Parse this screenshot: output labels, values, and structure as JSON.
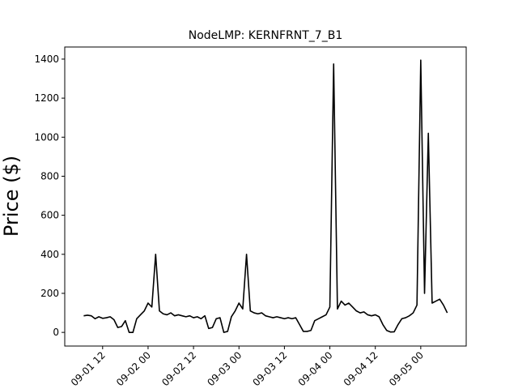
{
  "chart_data": {
    "type": "line",
    "title": "NodeLMP: KERNFRNT_7_B1",
    "y_label": "Price ($)",
    "x": [
      "09-01 07",
      "09-01 08",
      "09-01 09",
      "09-01 10",
      "09-01 11",
      "09-01 12",
      "09-01 13",
      "09-01 14",
      "09-01 15",
      "09-01 16",
      "09-01 17",
      "09-01 18",
      "09-01 19",
      "09-01 20",
      "09-01 21",
      "09-01 22",
      "09-01 23",
      "09-02 00",
      "09-02 01",
      "09-02 02",
      "09-02 03",
      "09-02 04",
      "09-02 05",
      "09-02 06",
      "09-02 07",
      "09-02 08",
      "09-02 09",
      "09-02 10",
      "09-02 11",
      "09-02 12",
      "09-02 13",
      "09-02 14",
      "09-02 15",
      "09-02 16",
      "09-02 17",
      "09-02 18",
      "09-02 19",
      "09-02 20",
      "09-02 21",
      "09-02 22",
      "09-02 23",
      "09-03 00",
      "09-03 01",
      "09-03 02",
      "09-03 03",
      "09-03 04",
      "09-03 05",
      "09-03 06",
      "09-03 07",
      "09-03 08",
      "09-03 09",
      "09-03 10",
      "09-03 11",
      "09-03 12",
      "09-03 13",
      "09-03 14",
      "09-03 15",
      "09-03 16",
      "09-03 17",
      "09-03 18",
      "09-03 19",
      "09-03 20",
      "09-03 21",
      "09-03 22",
      "09-03 23",
      "09-04 00",
      "09-04 01",
      "09-04 02",
      "09-04 03",
      "09-04 04",
      "09-04 05",
      "09-04 06",
      "09-04 07",
      "09-04 08",
      "09-04 09",
      "09-04 10",
      "09-04 11",
      "09-04 12",
      "09-04 13",
      "09-04 14",
      "09-04 15",
      "09-04 16",
      "09-04 17",
      "09-04 18",
      "09-04 19",
      "09-04 20",
      "09-04 21",
      "09-04 22",
      "09-04 23",
      "09-05 00",
      "09-05 01",
      "09-05 02",
      "09-05 03",
      "09-05 04",
      "09-05 05",
      "09-05 06",
      "09-05 07"
    ],
    "series": [
      {
        "color": "#000000",
        "values": [
          85,
          88,
          85,
          70,
          80,
          72,
          75,
          80,
          65,
          25,
          30,
          60,
          0,
          0,
          70,
          90,
          110,
          150,
          130,
          400,
          110,
          95,
          90,
          100,
          85,
          90,
          85,
          80,
          85,
          75,
          80,
          70,
          85,
          20,
          25,
          70,
          75,
          0,
          5,
          80,
          110,
          150,
          120,
          400,
          110,
          100,
          95,
          100,
          85,
          80,
          75,
          80,
          75,
          70,
          75,
          70,
          75,
          40,
          5,
          5,
          10,
          60,
          70,
          80,
          90,
          130,
          1375,
          120,
          160,
          140,
          150,
          130,
          110,
          100,
          105,
          90,
          85,
          90,
          80,
          40,
          10,
          2,
          3,
          40,
          70,
          75,
          85,
          100,
          140,
          1395,
          200,
          1020,
          150,
          160,
          170,
          140,
          100
        ]
      }
    ],
    "xlim": [
      "09-01 02",
      "09-05 12"
    ],
    "xticks": [
      "09-01 12",
      "09-02 00",
      "09-02 12",
      "09-03 00",
      "09-03 12",
      "09-04 00",
      "09-04 12",
      "09-05 00"
    ],
    "ylim": [
      -70,
      1462
    ],
    "yticks": [
      0,
      200,
      400,
      600,
      800,
      1000,
      1200,
      1400
    ]
  }
}
